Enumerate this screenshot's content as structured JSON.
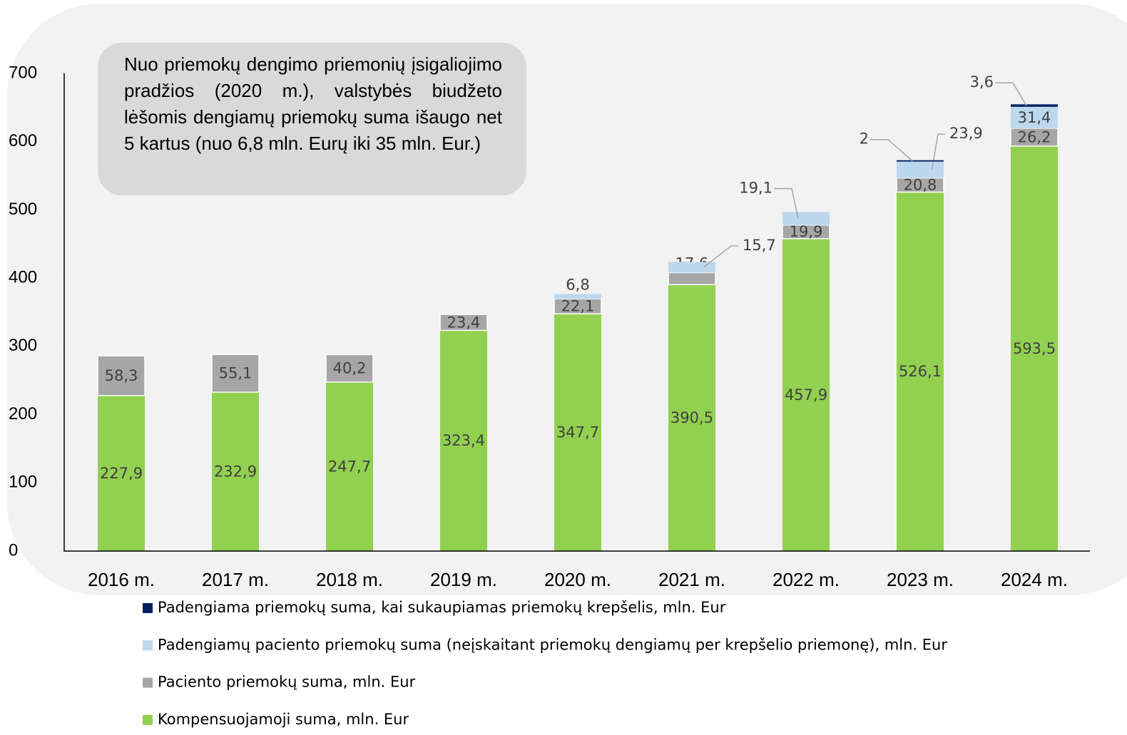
{
  "chart_data": {
    "type": "bar",
    "stacked": true,
    "annotation": "Nuo priemokų dengimo priemonių įsigaliojimo pradžios (2020 m.), valstybės biudžeto lėšomis dengiamų priemokų suma išaugo net 5 kartus (nuo 6,8 mln. Eurų iki 35 mln. Eur.)",
    "categories": [
      "2016 m.",
      "2017 m.",
      "2018 m.",
      "2019 m.",
      "2020 m.",
      "2021 m.",
      "2022 m.",
      "2023 m.",
      "2024 m."
    ],
    "series": [
      {
        "name": "Kompensuojamoji suma, mln. Eur",
        "color": "#92d050",
        "values": [
          227.9,
          232.9,
          247.7,
          323.4,
          347.7,
          390.5,
          457.9,
          526.1,
          593.5
        ],
        "value_labels": [
          "227,9",
          "232,9",
          "247,7",
          "323,4",
          "347,7",
          "390,5",
          "457,9",
          "526,1",
          "593,5"
        ]
      },
      {
        "name": "Paciento priemokų suma, mln. Eur",
        "color": "#a6a6a6",
        "values": [
          58.3,
          55.1,
          40.2,
          23.4,
          22.1,
          17.6,
          19.9,
          20.8,
          26.2
        ],
        "value_labels": [
          "58,3",
          "55,1",
          "40,2",
          "23,4",
          "22,1",
          "17,6",
          "19,9",
          "20,8",
          "26,2"
        ]
      },
      {
        "name": "Padengiamų paciento priemokų suma (neįskaitant priemokų dengiamų per krepšelio priemonę), mln. Eur",
        "color": "#bdd7ee",
        "values": [
          null,
          null,
          null,
          null,
          6.8,
          15.7,
          19.1,
          23.9,
          31.4
        ],
        "value_labels": [
          null,
          null,
          null,
          null,
          "6,8",
          "15,7",
          "19,1",
          "23,9",
          "31,4"
        ]
      },
      {
        "name": "Padengiama priemokų suma, kai sukaupiamas priemokų krepšelis, mln. Eur",
        "color": "#002060",
        "values": [
          null,
          null,
          null,
          null,
          null,
          null,
          null,
          2,
          3.6
        ],
        "value_labels": [
          null,
          null,
          null,
          null,
          null,
          null,
          null,
          "2",
          "3,6"
        ]
      }
    ],
    "ylim": [
      0,
      700
    ],
    "yticks": [
      0,
      100,
      200,
      300,
      400,
      500,
      600,
      700
    ],
    "grid": false
  }
}
